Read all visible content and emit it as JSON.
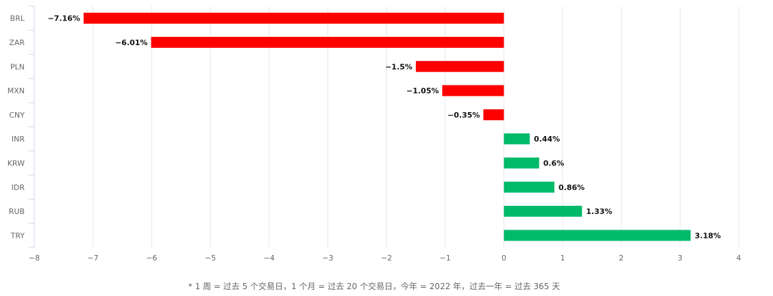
{
  "chart_data": {
    "type": "bar",
    "orientation": "horizontal",
    "categories": [
      "BRL",
      "ZAR",
      "PLN",
      "MXN",
      "CNY",
      "INR",
      "KRW",
      "IDR",
      "RUB",
      "TRY"
    ],
    "values": [
      -7.16,
      -6.01,
      -1.5,
      -1.05,
      -0.35,
      0.44,
      0.6,
      0.86,
      1.33,
      3.18
    ],
    "data_labels": [
      "−7.16%",
      "−6.01%",
      "−1.5%",
      "−1.05%",
      "−0.35%",
      "0.44%",
      "0.6%",
      "0.86%",
      "1.33%",
      "3.18%"
    ],
    "x_ticks": [
      -8,
      -7,
      -6,
      -5,
      -4,
      -3,
      -2,
      -1,
      0,
      1,
      2,
      3,
      4
    ],
    "x_tick_labels": [
      "−8",
      "−7",
      "−6",
      "−5",
      "−4",
      "−3",
      "−2",
      "−1",
      "0",
      "1",
      "2",
      "3",
      "4"
    ],
    "xlim": [
      -8,
      4
    ],
    "grid": true,
    "colors": {
      "negative": "#ff0000",
      "positive": "#00b96b",
      "grid": "#e6e6e6",
      "axis": "#ccd6eb"
    }
  },
  "footnote": "* 1 周 = 过去 5 个交易日，1 个月 = 过去 20 个交易日，今年 = 2022 年，过去一年 = 过去 365 天"
}
